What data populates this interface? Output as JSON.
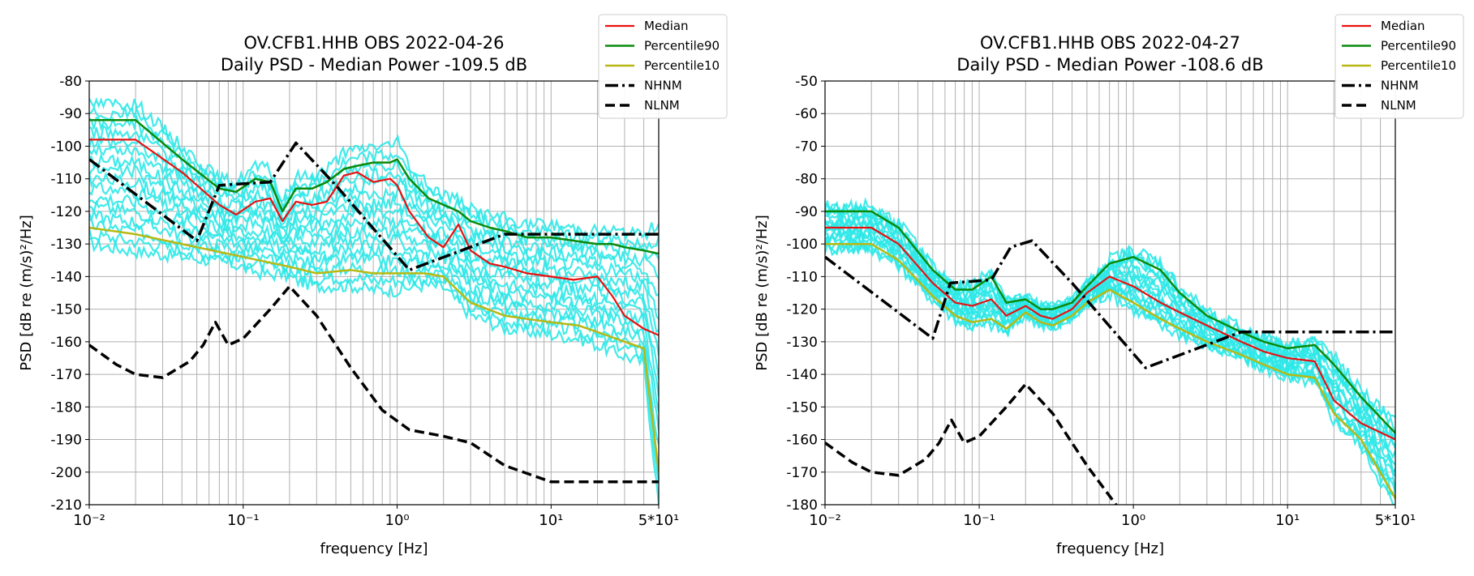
{
  "colors": {
    "individual": "#2ee8e8",
    "median": "#e81010",
    "p90": "#0a8a0a",
    "p10": "#b8b814",
    "model": "#000000",
    "grid": "#b0b0b0"
  },
  "legend": [
    {
      "label": "Median",
      "style": "median"
    },
    {
      "label": "Percentile90",
      "style": "p90"
    },
    {
      "label": "Percentile10",
      "style": "p10"
    },
    {
      "label": "NHNM",
      "style": "nhnm"
    },
    {
      "label": "NLNM",
      "style": "nlnm"
    }
  ],
  "chart_data": [
    {
      "type": "line",
      "title_line1": "OV.CFB1.HHB OBS 2022-04-26",
      "title_line2": "Daily PSD - Median Power -109.5 dB",
      "xlabel": "frequency [Hz]",
      "ylabel": "PSD [dB re (m/s)²/Hz]",
      "xscale": "log",
      "xlim": [
        0.01,
        50
      ],
      "ylim": [
        -210,
        -80
      ],
      "yticks": [
        -80,
        -90,
        -100,
        -110,
        -120,
        -130,
        -140,
        -150,
        -160,
        -170,
        -180,
        -190,
        -200,
        -210
      ],
      "xticks": [
        {
          "v": 0.01,
          "label": "10⁻²"
        },
        {
          "v": 0.1,
          "label": "10⁻¹"
        },
        {
          "v": 1,
          "label": "10⁰"
        },
        {
          "v": 10,
          "label": "10¹"
        },
        {
          "v": 50,
          "label": "5*10¹"
        }
      ],
      "grid": true,
      "legend_position": "upper-right (outside)",
      "series": [
        {
          "name": "Median",
          "style": "median",
          "x": [
            0.01,
            0.02,
            0.04,
            0.07,
            0.09,
            0.12,
            0.15,
            0.18,
            0.22,
            0.28,
            0.35,
            0.45,
            0.55,
            0.7,
            0.9,
            1.0,
            1.2,
            1.6,
            2.0,
            2.5,
            3,
            4,
            5,
            7,
            10,
            14,
            20,
            25,
            30,
            40,
            50
          ],
          "y": [
            -98,
            -98,
            -108,
            -118,
            -121,
            -117,
            -116,
            -123,
            -117,
            -118,
            -117,
            -109,
            -108,
            -111,
            -110,
            -112,
            -120,
            -128,
            -131,
            -124,
            -132,
            -136,
            -137,
            -139,
            -140,
            -141,
            -140,
            -146,
            -152,
            -156,
            -158
          ]
        },
        {
          "name": "Percentile90",
          "style": "p90",
          "x": [
            0.01,
            0.02,
            0.04,
            0.07,
            0.09,
            0.12,
            0.15,
            0.18,
            0.22,
            0.28,
            0.35,
            0.45,
            0.55,
            0.7,
            0.9,
            1.0,
            1.2,
            1.6,
            2.0,
            2.5,
            3,
            4,
            5,
            7,
            10,
            14,
            20,
            25,
            30,
            40,
            50
          ],
          "y": [
            -92,
            -92,
            -104,
            -113,
            -114,
            -110,
            -111,
            -120,
            -113,
            -113,
            -111,
            -107,
            -106,
            -105,
            -105,
            -104,
            -110,
            -116,
            -118,
            -120,
            -123,
            -125,
            -126,
            -128,
            -128,
            -129,
            -130,
            -130,
            -131,
            -132,
            -133
          ]
        },
        {
          "name": "Percentile10",
          "style": "p10",
          "x": [
            0.01,
            0.02,
            0.05,
            0.1,
            0.2,
            0.3,
            0.5,
            0.7,
            1.0,
            1.5,
            2.0,
            3,
            5,
            7,
            10,
            15,
            20,
            30,
            40,
            50
          ],
          "y": [
            -125,
            -127,
            -131,
            -134,
            -137,
            -139,
            -138,
            -139,
            -139,
            -139,
            -140,
            -148,
            -152,
            -153,
            -154,
            -155,
            -157,
            -160,
            -162,
            -200
          ]
        },
        {
          "name": "NHNM",
          "style": "nhnm",
          "x": [
            0.01,
            0.05,
            0.07,
            0.15,
            0.22,
            0.4,
            1.2,
            5,
            10,
            20,
            50
          ],
          "y": [
            -104,
            -129,
            -112,
            -111,
            -99,
            -112,
            -138,
            -127,
            -127,
            -127,
            -127
          ]
        },
        {
          "name": "NLNM",
          "style": "nlnm",
          "x": [
            0.01,
            0.015,
            0.02,
            0.03,
            0.045,
            0.055,
            0.066,
            0.08,
            0.1,
            0.15,
            0.2,
            0.3,
            0.5,
            0.8,
            1.2,
            2,
            3,
            5,
            10,
            20,
            50
          ],
          "y": [
            -161,
            -167,
            -170,
            -171,
            -166,
            -161,
            -154,
            -161,
            -159,
            -150,
            -143,
            -152,
            -168,
            -181,
            -187,
            -189,
            -191,
            -198,
            -203,
            -203,
            -203
          ]
        }
      ]
    },
    {
      "type": "line",
      "title_line1": "OV.CFB1.HHB OBS 2022-04-27",
      "title_line2": "Daily PSD - Median Power -108.6 dB",
      "xlabel": "frequency [Hz]",
      "ylabel": "PSD [dB re (m/s)²/Hz]",
      "xscale": "log",
      "xlim": [
        0.01,
        50
      ],
      "ylim": [
        -180,
        -50
      ],
      "yticks": [
        -50,
        -60,
        -70,
        -80,
        -90,
        -100,
        -110,
        -120,
        -130,
        -140,
        -150,
        -160,
        -170,
        -180
      ],
      "xticks": [
        {
          "v": 0.01,
          "label": "10⁻²"
        },
        {
          "v": 0.1,
          "label": "10⁻¹"
        },
        {
          "v": 1,
          "label": "10⁰"
        },
        {
          "v": 10,
          "label": "10¹"
        },
        {
          "v": 50,
          "label": "5*10¹"
        }
      ],
      "grid": true,
      "legend_position": "upper-right (outside)",
      "series": [
        {
          "name": "Median",
          "style": "median",
          "x": [
            0.01,
            0.02,
            0.03,
            0.05,
            0.07,
            0.09,
            0.12,
            0.15,
            0.2,
            0.25,
            0.3,
            0.4,
            0.5,
            0.7,
            1.0,
            1.5,
            2,
            3,
            5,
            7,
            10,
            15,
            20,
            30,
            50
          ],
          "y": [
            -95,
            -95,
            -100,
            -112,
            -118,
            -119,
            -117,
            -122,
            -119,
            -122,
            -123,
            -120,
            -115,
            -110,
            -113,
            -118,
            -121,
            -125,
            -130,
            -133,
            -135,
            -136,
            -148,
            -155,
            -160
          ]
        },
        {
          "name": "Percentile90",
          "style": "p90",
          "x": [
            0.01,
            0.02,
            0.03,
            0.05,
            0.07,
            0.09,
            0.12,
            0.15,
            0.2,
            0.25,
            0.3,
            0.4,
            0.5,
            0.7,
            1.0,
            1.5,
            2,
            3,
            5,
            7,
            10,
            15,
            20,
            30,
            50
          ],
          "y": [
            -90,
            -90,
            -95,
            -108,
            -114,
            -114,
            -110,
            -118,
            -117,
            -120,
            -120,
            -118,
            -113,
            -106,
            -104,
            -108,
            -115,
            -122,
            -127,
            -130,
            -132,
            -131,
            -137,
            -147,
            -158
          ]
        },
        {
          "name": "Percentile10",
          "style": "p10",
          "x": [
            0.01,
            0.02,
            0.03,
            0.05,
            0.07,
            0.09,
            0.12,
            0.15,
            0.2,
            0.25,
            0.3,
            0.4,
            0.5,
            0.7,
            1.0,
            1.5,
            2,
            3,
            5,
            7,
            10,
            15,
            20,
            30,
            50
          ],
          "y": [
            -100,
            -100,
            -105,
            -116,
            -122,
            -124,
            -123,
            -126,
            -121,
            -124,
            -125,
            -122,
            -118,
            -114,
            -118,
            -123,
            -126,
            -130,
            -134,
            -137,
            -140,
            -141,
            -152,
            -160,
            -178
          ]
        },
        {
          "name": "NHNM",
          "style": "nhnm",
          "x": [
            0.01,
            0.05,
            0.065,
            0.12,
            0.16,
            0.22,
            0.4,
            1.2,
            5,
            10,
            20,
            50
          ],
          "y": [
            -104,
            -129,
            -112,
            -111,
            -101,
            -99,
            -112,
            -138,
            -127,
            -127,
            -127,
            -127
          ]
        },
        {
          "name": "NLNM",
          "style": "nlnm",
          "x": [
            0.01,
            0.015,
            0.02,
            0.03,
            0.045,
            0.055,
            0.066,
            0.08,
            0.1,
            0.15,
            0.2,
            0.3,
            0.5,
            0.8
          ],
          "y": [
            -161,
            -167,
            -170,
            -171,
            -166,
            -161,
            -154,
            -161,
            -159,
            -150,
            -143,
            -152,
            -168,
            -181
          ]
        }
      ]
    }
  ]
}
